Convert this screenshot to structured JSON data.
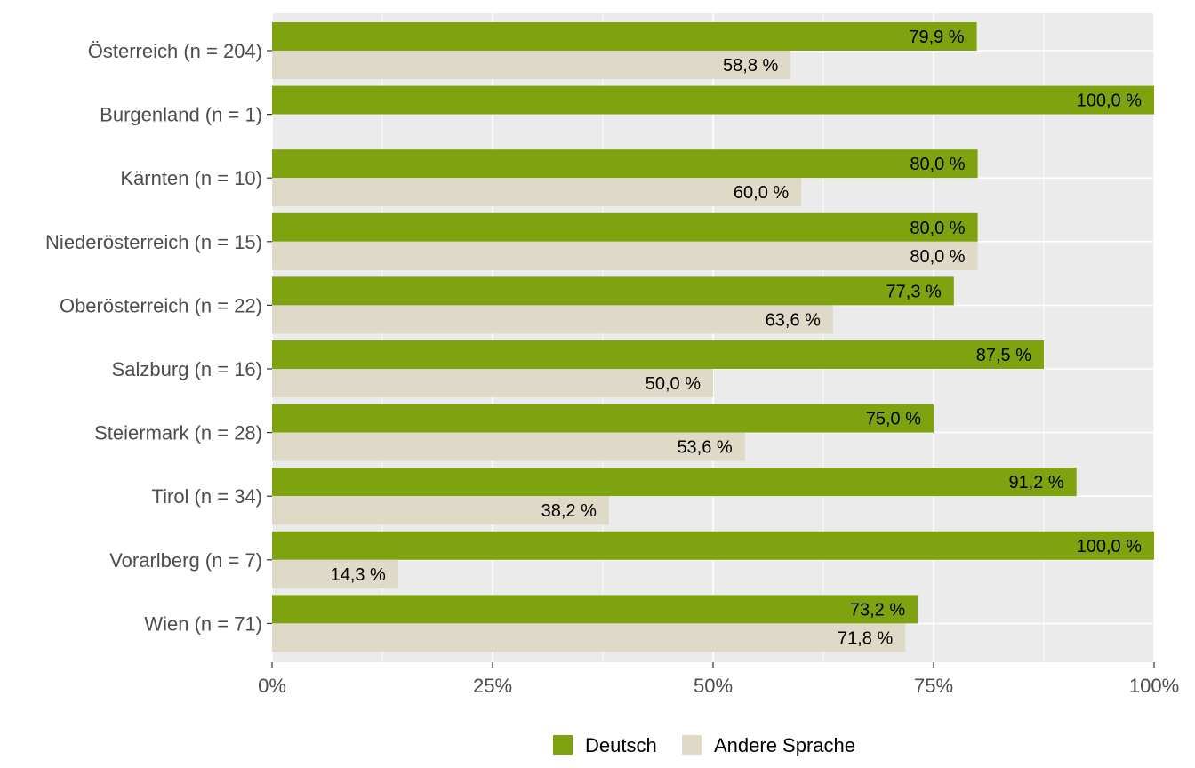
{
  "chart_data": {
    "type": "bar",
    "orientation": "horizontal",
    "categories": [
      "Österreich (n = 204)",
      "Burgenland (n = 1)",
      "Kärnten (n = 10)",
      "Niederösterreich (n = 15)",
      "Oberösterreich (n = 22)",
      "Salzburg (n = 16)",
      "Steiermark (n = 28)",
      "Tirol (n = 34)",
      "Vorarlberg (n = 7)",
      "Wien (n = 71)"
    ],
    "series": [
      {
        "name": "Deutsch",
        "color": "#7fa20f",
        "values": [
          79.9,
          100.0,
          80.0,
          80.0,
          77.3,
          87.5,
          75.0,
          91.2,
          100.0,
          73.2
        ],
        "labels": [
          "79,9 %",
          "100,0 %",
          "80,0 %",
          "80,0 %",
          "77,3 %",
          "87,5 %",
          "75,0 %",
          "91,2 %",
          "100,0 %",
          "73,2 %"
        ]
      },
      {
        "name": "Andere Sprache",
        "color": "#dedac7",
        "values": [
          58.8,
          null,
          60.0,
          80.0,
          63.6,
          50.0,
          53.6,
          38.2,
          14.3,
          71.8
        ],
        "labels": [
          "58,8 %",
          "",
          "60,0 %",
          "80,0 %",
          "63,6 %",
          "50,0 %",
          "53,6 %",
          "38,2 %",
          "14,3 %",
          "71,8 %"
        ]
      }
    ],
    "xlim": [
      0,
      100
    ],
    "xticks": [
      0,
      25,
      50,
      75,
      100
    ],
    "xtick_labels": [
      "0%",
      "25%",
      "50%",
      "75%",
      "100%"
    ],
    "grid": true,
    "panel_background": "#ebebeb",
    "legend_position": "bottom"
  }
}
